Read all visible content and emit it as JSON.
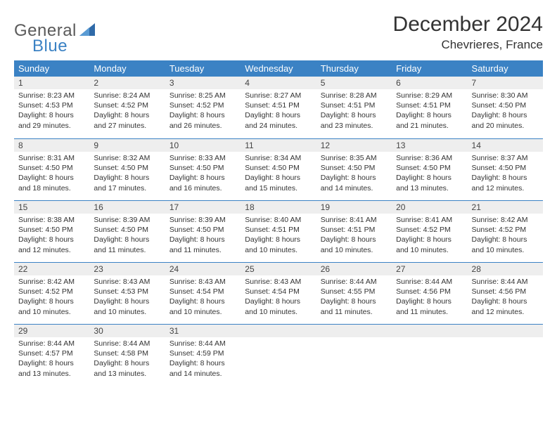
{
  "brand": {
    "part1": "General",
    "part2": "Blue"
  },
  "title": "December 2024",
  "location": "Chevrieres, France",
  "colors": {
    "header_bg": "#3b82c4",
    "header_text": "#ffffff",
    "daynum_bg": "#eeeeee",
    "cell_border": "#3b82c4",
    "body_text": "#333333",
    "logo_gray": "#5a5a5a",
    "logo_blue": "#3b82c4",
    "page_bg": "#ffffff"
  },
  "typography": {
    "title_fontsize": 30,
    "location_fontsize": 17,
    "header_fontsize": 13,
    "daynum_fontsize": 12,
    "body_fontsize": 10.5,
    "logo_fontsize": 24
  },
  "day_headers": [
    "Sunday",
    "Monday",
    "Tuesday",
    "Wednesday",
    "Thursday",
    "Friday",
    "Saturday"
  ],
  "weeks": [
    [
      {
        "n": "1",
        "sunrise": "Sunrise: 8:23 AM",
        "sunset": "Sunset: 4:53 PM",
        "daylight": "Daylight: 8 hours and 29 minutes."
      },
      {
        "n": "2",
        "sunrise": "Sunrise: 8:24 AM",
        "sunset": "Sunset: 4:52 PM",
        "daylight": "Daylight: 8 hours and 27 minutes."
      },
      {
        "n": "3",
        "sunrise": "Sunrise: 8:25 AM",
        "sunset": "Sunset: 4:52 PM",
        "daylight": "Daylight: 8 hours and 26 minutes."
      },
      {
        "n": "4",
        "sunrise": "Sunrise: 8:27 AM",
        "sunset": "Sunset: 4:51 PM",
        "daylight": "Daylight: 8 hours and 24 minutes."
      },
      {
        "n": "5",
        "sunrise": "Sunrise: 8:28 AM",
        "sunset": "Sunset: 4:51 PM",
        "daylight": "Daylight: 8 hours and 23 minutes."
      },
      {
        "n": "6",
        "sunrise": "Sunrise: 8:29 AM",
        "sunset": "Sunset: 4:51 PM",
        "daylight": "Daylight: 8 hours and 21 minutes."
      },
      {
        "n": "7",
        "sunrise": "Sunrise: 8:30 AM",
        "sunset": "Sunset: 4:50 PM",
        "daylight": "Daylight: 8 hours and 20 minutes."
      }
    ],
    [
      {
        "n": "8",
        "sunrise": "Sunrise: 8:31 AM",
        "sunset": "Sunset: 4:50 PM",
        "daylight": "Daylight: 8 hours and 18 minutes."
      },
      {
        "n": "9",
        "sunrise": "Sunrise: 8:32 AM",
        "sunset": "Sunset: 4:50 PM",
        "daylight": "Daylight: 8 hours and 17 minutes."
      },
      {
        "n": "10",
        "sunrise": "Sunrise: 8:33 AM",
        "sunset": "Sunset: 4:50 PM",
        "daylight": "Daylight: 8 hours and 16 minutes."
      },
      {
        "n": "11",
        "sunrise": "Sunrise: 8:34 AM",
        "sunset": "Sunset: 4:50 PM",
        "daylight": "Daylight: 8 hours and 15 minutes."
      },
      {
        "n": "12",
        "sunrise": "Sunrise: 8:35 AM",
        "sunset": "Sunset: 4:50 PM",
        "daylight": "Daylight: 8 hours and 14 minutes."
      },
      {
        "n": "13",
        "sunrise": "Sunrise: 8:36 AM",
        "sunset": "Sunset: 4:50 PM",
        "daylight": "Daylight: 8 hours and 13 minutes."
      },
      {
        "n": "14",
        "sunrise": "Sunrise: 8:37 AM",
        "sunset": "Sunset: 4:50 PM",
        "daylight": "Daylight: 8 hours and 12 minutes."
      }
    ],
    [
      {
        "n": "15",
        "sunrise": "Sunrise: 8:38 AM",
        "sunset": "Sunset: 4:50 PM",
        "daylight": "Daylight: 8 hours and 12 minutes."
      },
      {
        "n": "16",
        "sunrise": "Sunrise: 8:39 AM",
        "sunset": "Sunset: 4:50 PM",
        "daylight": "Daylight: 8 hours and 11 minutes."
      },
      {
        "n": "17",
        "sunrise": "Sunrise: 8:39 AM",
        "sunset": "Sunset: 4:50 PM",
        "daylight": "Daylight: 8 hours and 11 minutes."
      },
      {
        "n": "18",
        "sunrise": "Sunrise: 8:40 AM",
        "sunset": "Sunset: 4:51 PM",
        "daylight": "Daylight: 8 hours and 10 minutes."
      },
      {
        "n": "19",
        "sunrise": "Sunrise: 8:41 AM",
        "sunset": "Sunset: 4:51 PM",
        "daylight": "Daylight: 8 hours and 10 minutes."
      },
      {
        "n": "20",
        "sunrise": "Sunrise: 8:41 AM",
        "sunset": "Sunset: 4:52 PM",
        "daylight": "Daylight: 8 hours and 10 minutes."
      },
      {
        "n": "21",
        "sunrise": "Sunrise: 8:42 AM",
        "sunset": "Sunset: 4:52 PM",
        "daylight": "Daylight: 8 hours and 10 minutes."
      }
    ],
    [
      {
        "n": "22",
        "sunrise": "Sunrise: 8:42 AM",
        "sunset": "Sunset: 4:52 PM",
        "daylight": "Daylight: 8 hours and 10 minutes."
      },
      {
        "n": "23",
        "sunrise": "Sunrise: 8:43 AM",
        "sunset": "Sunset: 4:53 PM",
        "daylight": "Daylight: 8 hours and 10 minutes."
      },
      {
        "n": "24",
        "sunrise": "Sunrise: 8:43 AM",
        "sunset": "Sunset: 4:54 PM",
        "daylight": "Daylight: 8 hours and 10 minutes."
      },
      {
        "n": "25",
        "sunrise": "Sunrise: 8:43 AM",
        "sunset": "Sunset: 4:54 PM",
        "daylight": "Daylight: 8 hours and 10 minutes."
      },
      {
        "n": "26",
        "sunrise": "Sunrise: 8:44 AM",
        "sunset": "Sunset: 4:55 PM",
        "daylight": "Daylight: 8 hours and 11 minutes."
      },
      {
        "n": "27",
        "sunrise": "Sunrise: 8:44 AM",
        "sunset": "Sunset: 4:56 PM",
        "daylight": "Daylight: 8 hours and 11 minutes."
      },
      {
        "n": "28",
        "sunrise": "Sunrise: 8:44 AM",
        "sunset": "Sunset: 4:56 PM",
        "daylight": "Daylight: 8 hours and 12 minutes."
      }
    ],
    [
      {
        "n": "29",
        "sunrise": "Sunrise: 8:44 AM",
        "sunset": "Sunset: 4:57 PM",
        "daylight": "Daylight: 8 hours and 13 minutes."
      },
      {
        "n": "30",
        "sunrise": "Sunrise: 8:44 AM",
        "sunset": "Sunset: 4:58 PM",
        "daylight": "Daylight: 8 hours and 13 minutes."
      },
      {
        "n": "31",
        "sunrise": "Sunrise: 8:44 AM",
        "sunset": "Sunset: 4:59 PM",
        "daylight": "Daylight: 8 hours and 14 minutes."
      },
      null,
      null,
      null,
      null
    ]
  ]
}
